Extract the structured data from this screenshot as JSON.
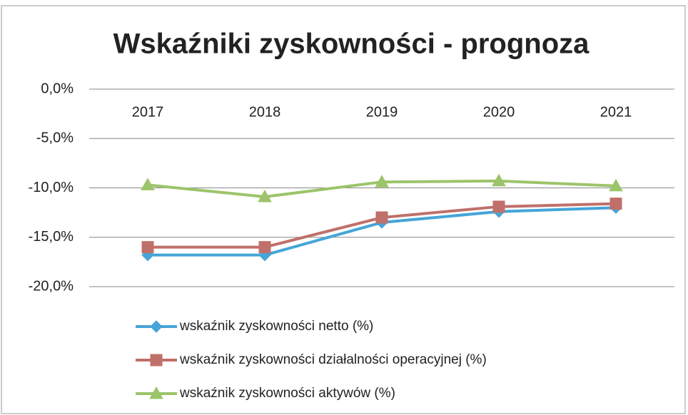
{
  "chart_data": {
    "type": "line",
    "title": "Wskaźniki zyskowności - prognoza",
    "categories": [
      "2017",
      "2018",
      "2019",
      "2020",
      "2021"
    ],
    "series": [
      {
        "name": "wskaźnik zyskowności netto (%)",
        "color": "#45a5d8",
        "marker": "diamond",
        "values": [
          -16.8,
          -16.8,
          -13.5,
          -12.4,
          -12.0
        ]
      },
      {
        "name": "wskaźnik zyskowności działalności operacyjnej (%)",
        "color": "#c0706a",
        "marker": "square",
        "values": [
          -16.0,
          -16.0,
          -13.0,
          -11.9,
          -11.6
        ]
      },
      {
        "name": "wskaźnik zyskowności aktywów (%)",
        "color": "#9cc46a",
        "marker": "triangle",
        "values": [
          -9.7,
          -10.9,
          -9.4,
          -9.3,
          -9.8
        ]
      }
    ],
    "ylim": [
      -20,
      0
    ],
    "yticks": [
      {
        "value": 0,
        "label": "0,0%"
      },
      {
        "value": -5,
        "label": "-5,0%"
      },
      {
        "value": -10,
        "label": "-10,0%"
      },
      {
        "value": -15,
        "label": "-15,0%"
      },
      {
        "value": -20,
        "label": "-20,0%"
      }
    ],
    "grid": true,
    "legend": "bottom"
  }
}
